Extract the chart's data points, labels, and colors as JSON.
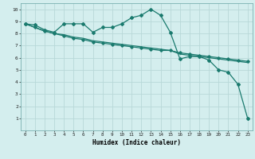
{
  "xlabel": "Humidex (Indice chaleur)",
  "ylabel": "",
  "bg_color": "#d4eeee",
  "grid_color": "#b8d8d8",
  "line_color": "#1a7a6e",
  "xlim": [
    -0.5,
    23.5
  ],
  "ylim": [
    0,
    10.5
  ],
  "xticks": [
    0,
    1,
    2,
    3,
    4,
    5,
    6,
    7,
    8,
    9,
    10,
    11,
    12,
    13,
    14,
    15,
    16,
    17,
    18,
    19,
    20,
    21,
    22,
    23
  ],
  "yticks": [
    1,
    2,
    3,
    4,
    5,
    6,
    7,
    8,
    9,
    10
  ],
  "line1_x": [
    0,
    1,
    2,
    3,
    4,
    5,
    6,
    7,
    8,
    9,
    10,
    11,
    12,
    13,
    14,
    15,
    16,
    17,
    18,
    19,
    20,
    21,
    22,
    23
  ],
  "line1_y": [
    8.8,
    8.7,
    8.3,
    8.1,
    8.8,
    8.8,
    8.8,
    8.1,
    8.5,
    8.5,
    8.8,
    9.3,
    9.5,
    10.0,
    9.5,
    8.1,
    5.9,
    6.1,
    6.1,
    5.8,
    5.0,
    4.8,
    3.8,
    1.0
  ],
  "line2_x": [
    0,
    1,
    2,
    3,
    4,
    5,
    6,
    7,
    8,
    9,
    10,
    11,
    12,
    13,
    14,
    15,
    16,
    17,
    18,
    19,
    20,
    21,
    22,
    23
  ],
  "line2_y": [
    8.8,
    8.5,
    8.2,
    8.0,
    7.8,
    7.6,
    7.5,
    7.3,
    7.2,
    7.1,
    7.0,
    6.9,
    6.8,
    6.7,
    6.6,
    6.6,
    6.4,
    6.3,
    6.2,
    6.1,
    6.0,
    5.9,
    5.8,
    5.7
  ],
  "line3_x": [
    0,
    1,
    2,
    3,
    4,
    5,
    6,
    7,
    8,
    9,
    10,
    11,
    12,
    13,
    14,
    15,
    16,
    17,
    18,
    19,
    20,
    21,
    22,
    23
  ],
  "line3_y": [
    8.8,
    8.5,
    8.2,
    8.0,
    7.9,
    7.7,
    7.6,
    7.4,
    7.3,
    7.2,
    7.1,
    7.0,
    6.9,
    6.8,
    6.7,
    6.6,
    6.3,
    6.2,
    6.1,
    6.0,
    5.9,
    5.8,
    5.7,
    5.6
  ]
}
